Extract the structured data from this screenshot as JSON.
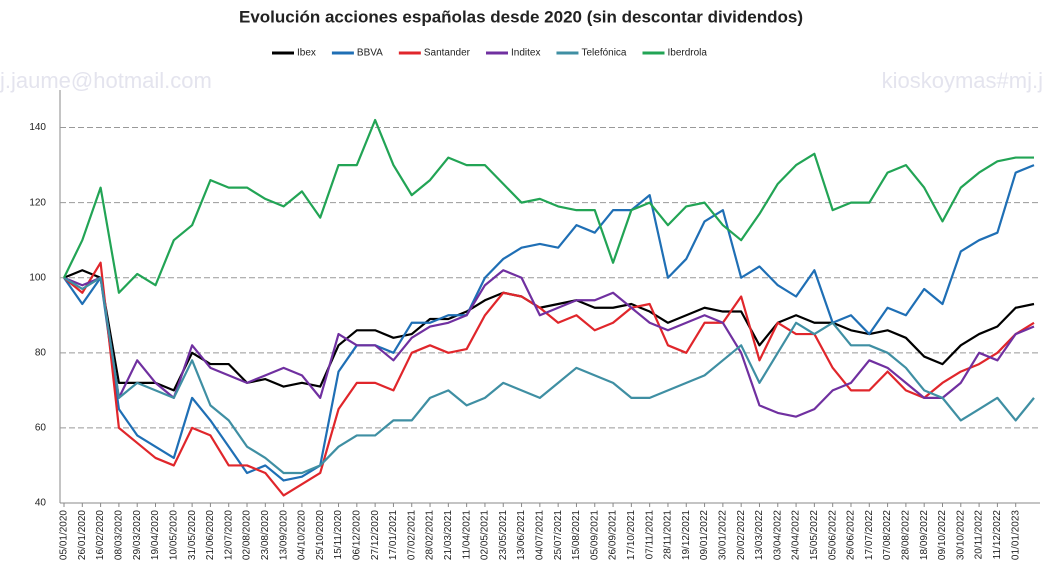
{
  "chart_data": {
    "type": "line",
    "title": "Evolución acciones españolas desde 2020 (sin descontar dividendos)",
    "annotations": [
      "j.jaume@hotmail.com",
      "kioskoymas#mj.j"
    ],
    "categories": [
      "05/01/2020",
      "26/01/2020",
      "16/02/2020",
      "08/03/2020",
      "29/03/2020",
      "19/04/2020",
      "10/05/2020",
      "31/05/2020",
      "21/06/2020",
      "12/07/2020",
      "02/08/2020",
      "23/08/2020",
      "13/09/2020",
      "04/10/2020",
      "25/10/2020",
      "15/11/2020",
      "06/12/2020",
      "27/12/2020",
      "17/01/2021",
      "07/02/2021",
      "28/02/2021",
      "21/03/2021",
      "11/04/2021",
      "02/05/2021",
      "23/05/2021",
      "13/06/2021",
      "04/07/2021",
      "25/07/2021",
      "15/08/2021",
      "05/09/2021",
      "26/09/2021",
      "17/10/2021",
      "07/11/2021",
      "28/11/2021",
      "19/12/2021",
      "09/01/2022",
      "30/01/2022",
      "20/02/2022",
      "13/03/2022",
      "03/04/2022",
      "24/04/2022",
      "15/05/2022",
      "05/06/2022",
      "26/06/2022",
      "17/07/2022",
      "07/08/2022",
      "28/08/2022",
      "18/09/2022",
      "09/10/2022",
      "30/10/2022",
      "20/11/2022",
      "11/12/2022",
      "01/01/2023",
      null
    ],
    "series": [
      {
        "name": "Ibex",
        "color": "#000000",
        "values": [
          100,
          102,
          100,
          72,
          72,
          72,
          70,
          80,
          77,
          77,
          72,
          73,
          71,
          72,
          71,
          82,
          86,
          86,
          84,
          85,
          89,
          89,
          91,
          94,
          96,
          95,
          92,
          93,
          94,
          92,
          92,
          93,
          91,
          88,
          90,
          92,
          91,
          91,
          82,
          88,
          90,
          88,
          88,
          86,
          85,
          86,
          84,
          79,
          77,
          82,
          85,
          87,
          92,
          93
        ]
      },
      {
        "name": "BBVA",
        "color": "#1f6fb5",
        "values": [
          100,
          93,
          100,
          65,
          58,
          55,
          52,
          68,
          62,
          55,
          48,
          50,
          46,
          47,
          50,
          75,
          82,
          82,
          80,
          88,
          88,
          90,
          90,
          100,
          105,
          108,
          109,
          108,
          114,
          112,
          118,
          118,
          122,
          100,
          105,
          115,
          118,
          100,
          103,
          98,
          95,
          102,
          88,
          90,
          85,
          92,
          90,
          97,
          93,
          107,
          110,
          112,
          128,
          130
        ]
      },
      {
        "name": "Santander",
        "color": "#e0262b",
        "values": [
          100,
          96,
          104,
          60,
          56,
          52,
          50,
          60,
          58,
          50,
          50,
          48,
          42,
          45,
          48,
          65,
          72,
          72,
          70,
          80,
          82,
          80,
          81,
          90,
          96,
          95,
          92,
          88,
          90,
          86,
          88,
          92,
          93,
          82,
          80,
          88,
          88,
          95,
          78,
          88,
          85,
          85,
          76,
          70,
          70,
          75,
          70,
          68,
          72,
          75,
          77,
          80,
          85,
          88
        ]
      },
      {
        "name": "Inditex",
        "color": "#7030a0",
        "values": [
          100,
          98,
          100,
          68,
          78,
          72,
          68,
          82,
          76,
          74,
          72,
          74,
          76,
          74,
          68,
          85,
          82,
          82,
          78,
          84,
          87,
          88,
          90,
          98,
          102,
          100,
          90,
          92,
          94,
          94,
          96,
          92,
          88,
          86,
          88,
          90,
          88,
          80,
          66,
          64,
          63,
          65,
          70,
          72,
          78,
          76,
          72,
          68,
          68,
          72,
          80,
          78,
          85,
          87
        ]
      },
      {
        "name": "Telefónica",
        "color": "#3f8fa3",
        "values": [
          100,
          97,
          100,
          68,
          72,
          70,
          68,
          78,
          66,
          62,
          55,
          52,
          48,
          48,
          50,
          55,
          58,
          58,
          62,
          62,
          68,
          70,
          66,
          68,
          72,
          70,
          68,
          72,
          76,
          74,
          72,
          68,
          68,
          70,
          72,
          74,
          78,
          82,
          72,
          80,
          88,
          85,
          88,
          82,
          82,
          80,
          76,
          70,
          68,
          62,
          65,
          68,
          62,
          68
        ]
      },
      {
        "name": "Iberdrola",
        "color": "#22a455",
        "values": [
          100,
          110,
          124,
          96,
          101,
          98,
          110,
          114,
          126,
          124,
          124,
          121,
          119,
          123,
          116,
          130,
          130,
          142,
          130,
          122,
          126,
          132,
          130,
          130,
          125,
          120,
          121,
          119,
          118,
          118,
          104,
          118,
          120,
          114,
          119,
          120,
          114,
          110,
          117,
          125,
          130,
          133,
          118,
          120,
          120,
          128,
          130,
          124,
          115,
          124,
          128,
          131,
          132,
          132
        ]
      }
    ],
    "ylim": [
      40,
      150
    ],
    "yticks": [
      40,
      60,
      80,
      100,
      120,
      140
    ],
    "grid": true
  }
}
